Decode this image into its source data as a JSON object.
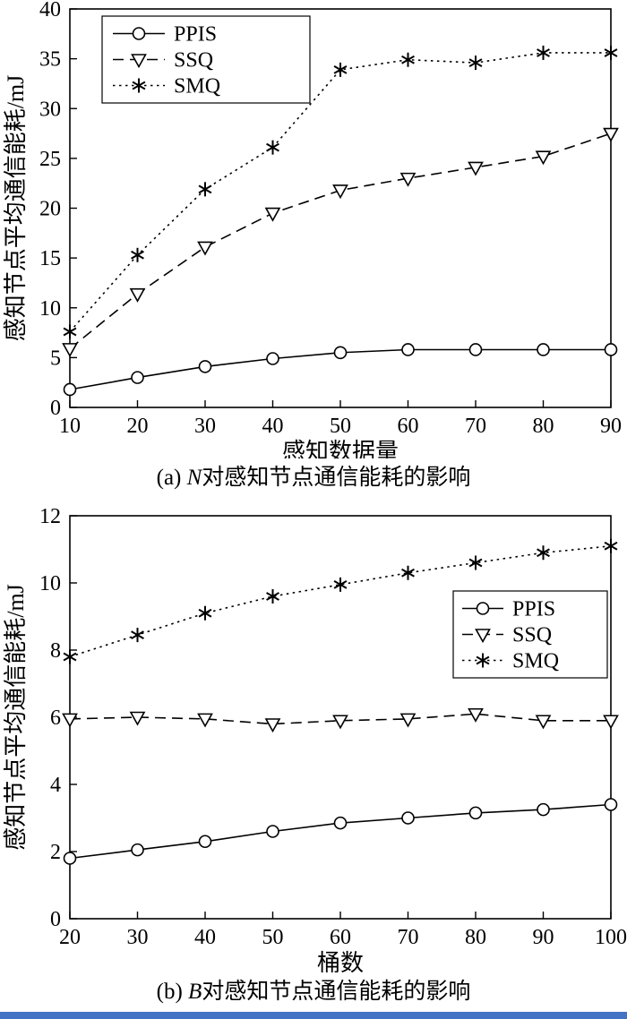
{
  "page": {
    "background": "#ffffff",
    "accent_bar_color": "#4472c4",
    "line_color": "#000000"
  },
  "chart_data": [
    {
      "type": "line",
      "title": "",
      "xlabel": "感知数据量",
      "ylabel": "感知节点平均通信能耗/mJ",
      "caption": {
        "prefix": "(a) ",
        "italic_var": "N",
        "text": "对感知节点通信能耗的影响"
      },
      "x": [
        10,
        20,
        30,
        40,
        50,
        60,
        70,
        80,
        90
      ],
      "xlim": [
        10,
        90
      ],
      "ylim": [
        0,
        40
      ],
      "xticks": [
        10,
        20,
        30,
        40,
        50,
        60,
        70,
        80,
        90
      ],
      "yticks": [
        0,
        5,
        10,
        15,
        20,
        25,
        30,
        35,
        40
      ],
      "grid": false,
      "legend_position": "top-left",
      "series": [
        {
          "name": "PPIS",
          "marker": "circle",
          "dash": "solid",
          "values": [
            1.8,
            3.0,
            4.1,
            4.9,
            5.5,
            5.8,
            5.8,
            5.8,
            5.8
          ]
        },
        {
          "name": "SSQ",
          "marker": "triangle-down",
          "dash": "dashed",
          "values": [
            5.9,
            11.4,
            16.1,
            19.5,
            21.8,
            23.0,
            24.1,
            25.2,
            27.5
          ]
        },
        {
          "name": "SMQ",
          "marker": "asterisk",
          "dash": "dotted",
          "values": [
            7.6,
            15.3,
            21.9,
            26.1,
            33.9,
            34.9,
            34.6,
            35.6,
            35.6
          ]
        }
      ]
    },
    {
      "type": "line",
      "title": "",
      "xlabel": "桶数",
      "ylabel": "感知节点平均通信能耗/mJ",
      "caption": {
        "prefix": "(b) ",
        "italic_var": "B",
        "text": "对感知节点通信能耗的影响"
      },
      "x": [
        20,
        30,
        40,
        50,
        60,
        70,
        80,
        90,
        100
      ],
      "xlim": [
        20,
        100
      ],
      "ylim": [
        0,
        12
      ],
      "xticks": [
        20,
        30,
        40,
        50,
        60,
        70,
        80,
        90,
        100
      ],
      "yticks": [
        0,
        2,
        4,
        6,
        8,
        10,
        12
      ],
      "grid": false,
      "legend_position": "right",
      "series": [
        {
          "name": "PPIS",
          "marker": "circle",
          "dash": "solid",
          "values": [
            1.8,
            2.05,
            2.3,
            2.6,
            2.85,
            3.0,
            3.15,
            3.25,
            3.4
          ]
        },
        {
          "name": "SSQ",
          "marker": "triangle-down",
          "dash": "dashed",
          "values": [
            5.95,
            6.0,
            5.95,
            5.8,
            5.9,
            5.95,
            6.1,
            5.9,
            5.9
          ]
        },
        {
          "name": "SMQ",
          "marker": "asterisk",
          "dash": "dotted",
          "values": [
            7.8,
            8.45,
            9.1,
            9.6,
            9.95,
            10.3,
            10.6,
            10.9,
            11.1
          ]
        }
      ]
    }
  ]
}
